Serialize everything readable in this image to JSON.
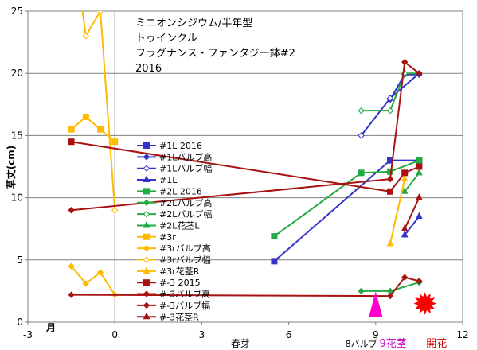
{
  "chart_data": {
    "type": "line",
    "title_lines": [
      "ミニオンシジウム/半年型",
      "トゥインクル",
      "フラグナンス・ファンタジー鉢#2",
      "2016"
    ],
    "ylabel": "草丈(cm)",
    "xlabel_month": "月",
    "xlabel_bud": "春芽",
    "xlim": [
      -3,
      12
    ],
    "ylim": [
      0,
      25
    ],
    "xticks": [
      -3,
      0,
      3,
      6,
      9,
      12
    ],
    "yticks": [
      0,
      5,
      10,
      15,
      20,
      25
    ],
    "annotations": [
      {
        "text": "8バルブ",
        "x": 8.5,
        "color": "#000000"
      },
      {
        "text": "9花茎",
        "x": 9.6,
        "color": "#cc00cc"
      },
      {
        "text": "開花",
        "x": 11.1,
        "color": "#cc0000"
      }
    ],
    "markers": [
      {
        "shape": "triangle",
        "color": "#ff00cc",
        "x": 9.0,
        "y": 1.2,
        "label": "花茎"
      },
      {
        "shape": "burst",
        "color": "#ff0000",
        "x": 10.7,
        "y": 1.5,
        "label": "開花"
      }
    ],
    "series": [
      {
        "name": "#1L 2016",
        "color": "#3333cc",
        "marker": "square",
        "fill": true,
        "points": [
          [
            5.5,
            4.9
          ],
          [
            9.5,
            13.0
          ],
          [
            10.5,
            13.0
          ]
        ]
      },
      {
        "name": "#1Lバルブ高",
        "color": "#3333cc",
        "marker": "diamond",
        "fill": true,
        "points": [
          [
            9.5,
            17.9
          ],
          [
            10.0,
            19.9
          ],
          [
            10.5,
            19.9
          ]
        ]
      },
      {
        "name": "#1Lバルブ幅",
        "color": "#3333cc",
        "marker": "diamond",
        "fill": false,
        "points": [
          [
            8.5,
            15.0
          ],
          [
            9.5,
            18.0
          ],
          [
            10.5,
            20.0
          ]
        ]
      },
      {
        "name": "#1L",
        "color": "#3333cc",
        "marker": "triangle",
        "fill": true,
        "points": [
          [
            10.0,
            7.0
          ],
          [
            10.5,
            8.5
          ]
        ]
      },
      {
        "name": "#2L 2016",
        "color": "#22aa44",
        "marker": "square",
        "fill": true,
        "points": [
          [
            5.5,
            6.9
          ],
          [
            8.5,
            12.0
          ],
          [
            9.5,
            12.1
          ],
          [
            10.5,
            13.0
          ]
        ]
      },
      {
        "name": "#2Lバルブ高",
        "color": "#22aa44",
        "marker": "diamond",
        "fill": true,
        "points": [
          [
            8.5,
            2.5
          ],
          [
            9.5,
            2.5
          ],
          [
            10.5,
            3.2
          ]
        ]
      },
      {
        "name": "#2Lバルブ幅",
        "color": "#22aa44",
        "marker": "diamond",
        "fill": false,
        "points": [
          [
            8.5,
            17.0
          ],
          [
            9.5,
            17.0
          ],
          [
            10.0,
            20.0
          ],
          [
            10.5,
            20.0
          ]
        ]
      },
      {
        "name": "#2L花茎L",
        "color": "#22aa44",
        "marker": "triangle",
        "fill": true,
        "points": [
          [
            10.0,
            10.5
          ],
          [
            10.5,
            12.0
          ]
        ]
      },
      {
        "name": "#3r",
        "color": "#ffbb00",
        "marker": "square",
        "fill": true,
        "points": [
          [
            -1.5,
            15.5
          ],
          [
            -1.0,
            16.5
          ],
          [
            -0.5,
            15.5
          ],
          [
            0.0,
            14.5
          ]
        ]
      },
      {
        "name": "#3rバルブ高",
        "color": "#ffbb00",
        "marker": "diamond",
        "fill": true,
        "points": [
          [
            -1.5,
            4.5
          ],
          [
            -1.0,
            3.1
          ],
          [
            -0.5,
            4.0
          ],
          [
            0.0,
            2.2
          ]
        ]
      },
      {
        "name": "#3rバルブ幅",
        "color": "#ffbb00",
        "marker": "diamond",
        "fill": false,
        "points": [
          [
            -1.2,
            26.5
          ],
          [
            -1.0,
            23.0
          ],
          [
            -0.5,
            25.0
          ],
          [
            0.0,
            9.0
          ]
        ]
      },
      {
        "name": "#3r花茎R",
        "color": "#ffbb00",
        "marker": "triangle",
        "fill": true,
        "points": [
          [
            9.5,
            6.3
          ],
          [
            10.0,
            11.5
          ]
        ]
      },
      {
        "name": "#-3 2015",
        "color": "#aa1111",
        "marker": "square",
        "fill": true,
        "points": [
          [
            -1.5,
            14.5
          ],
          [
            9.5,
            10.5
          ],
          [
            10.0,
            12.0
          ],
          [
            10.5,
            12.5
          ]
        ]
      },
      {
        "name": "#-3バルブ高",
        "color": "#aa1111",
        "marker": "diamond",
        "fill": true,
        "points": [
          [
            -1.5,
            2.2
          ],
          [
            9.5,
            2.1
          ],
          [
            10.0,
            3.6
          ],
          [
            10.5,
            3.3
          ]
        ]
      },
      {
        "name": "#-3バルブ幅",
        "color": "#aa1111",
        "marker": "diamond",
        "fill": true,
        "points": [
          [
            -1.5,
            9.0
          ],
          [
            9.5,
            11.5
          ],
          [
            10.0,
            20.9
          ],
          [
            10.5,
            20.0
          ]
        ]
      },
      {
        "name": "#-3花茎R",
        "color": "#aa1111",
        "marker": "triangle",
        "fill": true,
        "points": [
          [
            10.0,
            7.5
          ],
          [
            10.5,
            10.0
          ]
        ]
      }
    ]
  }
}
